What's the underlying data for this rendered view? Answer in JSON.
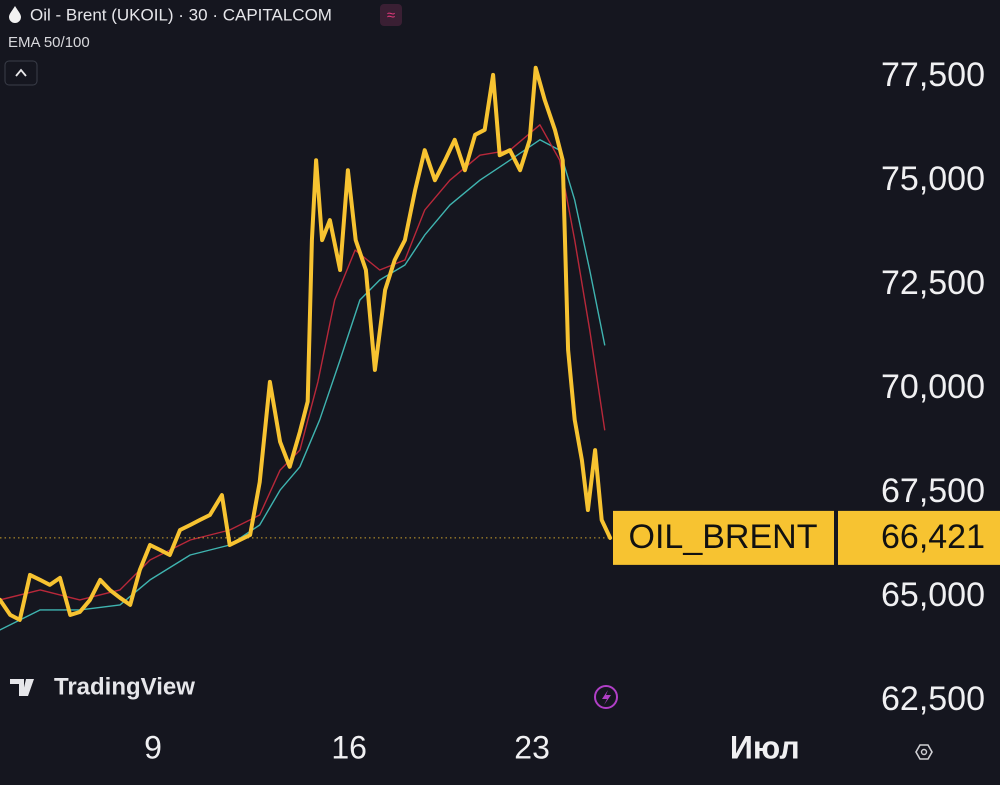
{
  "chart_data": {
    "type": "line",
    "title": "Oil - Brent (UKOIL) · 30 · CAPITALCOM",
    "subtitle": "EMA 50/100",
    "watermark": "TradingView",
    "xlim": [
      0,
      139.2
    ],
    "xticks": [
      {
        "value": 25.5,
        "label": "9"
      },
      {
        "value": 58.2,
        "label": "16"
      },
      {
        "value": 88.7,
        "label": "23"
      },
      {
        "value": 127.5,
        "label": "Июл"
      }
    ],
    "ylim": [
      62043,
      79351
    ],
    "yticks": [
      {
        "value": 62500,
        "label": "62,500"
      },
      {
        "value": 65000,
        "label": "65,000"
      },
      {
        "value": 67500,
        "label": "67,500"
      },
      {
        "value": 70000,
        "label": "70,000"
      },
      {
        "value": 72500,
        "label": "72,500"
      },
      {
        "value": 75000,
        "label": "75,000"
      },
      {
        "value": 77500,
        "label": "77,500"
      }
    ],
    "grid": false,
    "series": [
      {
        "color": "#3fb4b0",
        "x": [
          0,
          6.7,
          13.3,
          20,
          25,
          31.7,
          38.3,
          43.3,
          46.7,
          50,
          53.3,
          56.7,
          60,
          63.3,
          67.5,
          70.8,
          75,
          80,
          85,
          90,
          93.3,
          95.8,
          98.3,
          100.8
        ],
        "values": [
          64210,
          64690,
          64690,
          64810,
          65410,
          66010,
          66250,
          66730,
          67570,
          68130,
          69260,
          70700,
          72140,
          72620,
          72980,
          73700,
          74420,
          75020,
          75500,
          75990,
          75740,
          74540,
          72860,
          71060
        ]
      },
      {
        "color": "#b8283a",
        "x": [
          0,
          6.7,
          13.3,
          20,
          25,
          31.7,
          38.3,
          43.3,
          46.7,
          50,
          53,
          55.8,
          59.2,
          63.3,
          67.5,
          70.8,
          75,
          80,
          85,
          90,
          93.3,
          95.8,
          98.3,
          100.8
        ],
        "values": [
          64930,
          65170,
          64930,
          65170,
          65890,
          66370,
          66610,
          66970,
          68050,
          68530,
          70170,
          72140,
          73340,
          72860,
          73100,
          74300,
          75020,
          75620,
          75740,
          76350,
          75500,
          73580,
          71420,
          69020
        ]
      },
      {
        "name": "OIL_BRENT",
        "color": "#f7c331",
        "x": [
          0,
          1.7,
          3.3,
          5,
          6.7,
          8.3,
          10,
          11.7,
          13.3,
          15,
          16.7,
          18.3,
          20,
          21.7,
          23.3,
          25,
          26.7,
          28.3,
          30,
          31.7,
          33.3,
          35,
          37,
          38.3,
          40,
          41.7,
          43.3,
          45,
          46.7,
          48.3,
          50,
          51.3,
          52,
          52.7,
          53.7,
          55,
          56.7,
          58,
          59.3,
          61,
          62.5,
          64.2,
          65.8,
          67.5,
          69.2,
          70.8,
          72.5,
          74.2,
          75.8,
          77.5,
          79.2,
          80.8,
          82.2,
          83.3,
          85,
          86.7,
          88.3,
          89.3,
          90.8,
          92.5,
          93.8,
          94.7,
          95.8,
          97,
          98,
          99.2,
          100.3,
          101.7
        ],
        "values": [
          64930,
          64570,
          64450,
          65530,
          65410,
          65290,
          65460,
          64570,
          64640,
          64930,
          65410,
          65170,
          64980,
          64810,
          65650,
          66250,
          66130,
          66010,
          66610,
          66730,
          66850,
          66970,
          67450,
          66250,
          66370,
          66490,
          67760,
          70170,
          68730,
          68130,
          68970,
          69700,
          73580,
          75500,
          73580,
          74060,
          72860,
          75260,
          73580,
          72860,
          70460,
          72380,
          73100,
          73580,
          74780,
          75740,
          75020,
          75500,
          75990,
          75260,
          76110,
          76230,
          77550,
          75620,
          75740,
          75260,
          75990,
          77720,
          76950,
          76230,
          75500,
          70940,
          69260,
          68290,
          67090,
          68530,
          66850,
          66421
        ],
        "value_labels": [
          null,
          null,
          null,
          null,
          null,
          null,
          null,
          null,
          null,
          null,
          null,
          null,
          null,
          null,
          null,
          null,
          null,
          null,
          null,
          null,
          null,
          null,
          null,
          null,
          null,
          null,
          null,
          null,
          null,
          null,
          null,
          null,
          null,
          null,
          null,
          null,
          null,
          null,
          null,
          null,
          null,
          null,
          null,
          null,
          null,
          null,
          null,
          null,
          null,
          null,
          null,
          null,
          null,
          null,
          null,
          null,
          null,
          null,
          null,
          null,
          null,
          null,
          null,
          null,
          null,
          null,
          null,
          "66,421"
        ]
      }
    ]
  }
}
